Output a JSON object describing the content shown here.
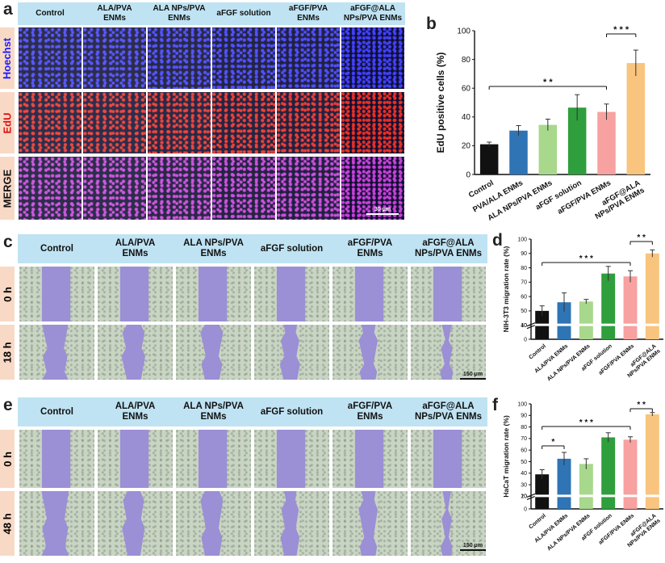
{
  "panel_letters": {
    "a": "a",
    "b": "b",
    "c": "c",
    "d": "d",
    "e": "e",
    "f": "f"
  },
  "groups_header": [
    "Control",
    "ALA/PVA\nENMs",
    "ALA NPs/PVA\nENMs",
    "aFGF solution",
    "aFGF/PVA\nENMs",
    "aFGF@ALA\nNPs/PVA ENMs"
  ],
  "panel_a": {
    "rows": [
      "Hoechst",
      "EdU",
      "MERGE"
    ],
    "row_colors": [
      "#1a1aff",
      "#e01010",
      "#111111"
    ],
    "scale_bar": "30 μm"
  },
  "panel_c": {
    "rows": [
      "0 h",
      "18 h"
    ],
    "scale_bar": "150 μm"
  },
  "panel_e": {
    "rows": [
      "0 h",
      "48 h"
    ],
    "scale_bar": "150 μm"
  },
  "colors": {
    "black": "#111111",
    "blue": "#2f74b5",
    "lightgreen": "#a8d88c",
    "green": "#2f9e3c",
    "pink": "#f7a1a0",
    "orange": "#f9c47e",
    "wound_area": "#9b8fd6",
    "fluo_blue": "#3a3aff",
    "fluo_red": "#e8281e",
    "fluo_merge": "#c63ad8"
  },
  "chart_data": [
    {
      "type": "bar",
      "panel": "b",
      "categories": [
        "Control",
        "PVA/ALA ENMs",
        "ALA NPs/PVA ENMs",
        "aFGF solution",
        "aFGF/PVA ENMs",
        "aFGF@ALA\nNPs/PVA ENMs"
      ],
      "values": [
        21,
        30.5,
        34.5,
        46.5,
        43.5,
        77.5
      ],
      "errors": [
        1.5,
        3.5,
        4,
        9,
        5.5,
        9
      ],
      "ylabel": "EdU positive cells (%)",
      "ylim": [
        0,
        100
      ],
      "yticks": [
        0,
        20,
        40,
        60,
        80,
        100
      ],
      "significance": [
        {
          "from": 0,
          "to": 4,
          "label": "* *"
        },
        {
          "from": 4,
          "to": 5,
          "label": "* * *"
        }
      ]
    },
    {
      "type": "bar",
      "panel": "d",
      "categories": [
        "Control",
        "ALA/PVA ENMs",
        "ALA NPs/PVA ENMs",
        "aFGF solution",
        "aFGF/PVA ENMs",
        "aFGF@ALA\nNPs/PVA ENMs"
      ],
      "values": [
        50,
        56,
        56.5,
        76,
        74,
        90
      ],
      "errors": [
        3.5,
        6.5,
        1.5,
        5,
        4,
        2.5
      ],
      "ylabel": "NIH-3T3 migration rate (%)",
      "ylim": [
        0,
        100
      ],
      "axis_break": [
        10,
        40
      ],
      "yticks": [
        0,
        10,
        40,
        50,
        60,
        70,
        80,
        90,
        100
      ],
      "ytick_labels": [
        "0",
        "10",
        "40",
        "50",
        "60",
        "70",
        "80",
        "90",
        "100"
      ],
      "significance": [
        {
          "from": 0,
          "to": 4,
          "label": "* * *"
        },
        {
          "from": 4,
          "to": 5,
          "label": "* *"
        }
      ]
    },
    {
      "type": "bar",
      "panel": "f",
      "categories": [
        "Control",
        "ALA/PVA ENMs",
        "ALA NPs/PVA ENMs",
        "aFGF solution",
        "aFGF/PVA ENMs",
        "aFGF@ALA\nNPs/PVA ENMs"
      ],
      "values": [
        39,
        52.5,
        48,
        71,
        69,
        91
      ],
      "errors": [
        4,
        5.5,
        4.5,
        4,
        2.5,
        1.5
      ],
      "ylabel": "HaCaT migration rate (%)",
      "ylim": [
        0,
        100
      ],
      "axis_break": [
        10,
        20
      ],
      "yticks": [
        0,
        10,
        20,
        30,
        40,
        50,
        60,
        70,
        80,
        90,
        100
      ],
      "ytick_labels": [
        "0",
        "10",
        "20",
        "30",
        "40",
        "50",
        "60",
        "70",
        "80",
        "90",
        "100"
      ],
      "significance": [
        {
          "from": 0,
          "to": 1,
          "label": "*"
        },
        {
          "from": 0,
          "to": 4,
          "label": "* * *"
        },
        {
          "from": 4,
          "to": 5,
          "label": "* *"
        }
      ]
    }
  ]
}
